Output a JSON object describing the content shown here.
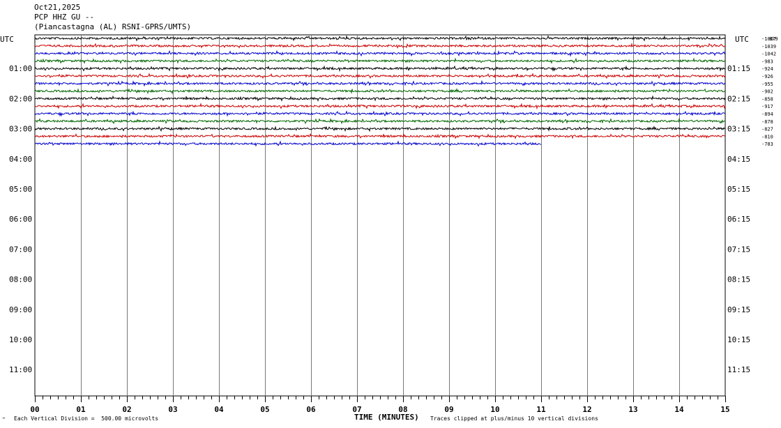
{
  "header": {
    "date": "Oct21,2025",
    "channel": "PCP HHZ GU --",
    "station": "(Piancastagna (AL) RSNI-GPRS/UMTS)"
  },
  "chart_data": {
    "type": "line",
    "title": "PCP HHZ GU --",
    "xlabel": "TIME (MINUTES)",
    "x_ticks": [
      "00",
      "01",
      "02",
      "03",
      "04",
      "05",
      "06",
      "07",
      "08",
      "09",
      "10",
      "11",
      "12",
      "13",
      "14",
      "15"
    ],
    "xlim": [
      0,
      15
    ],
    "left_unit": "UTC",
    "right_unit": "UTC",
    "left_hour_labels": [
      "01:00",
      "02:00",
      "03:00",
      "04:00",
      "05:00",
      "06:00",
      "07:00",
      "08:00",
      "09:00",
      "10:00",
      "11:00"
    ],
    "right_hour_labels": [
      "01:15",
      "02:15",
      "03:15",
      "04:15",
      "05:15",
      "06:15",
      "07:15",
      "08:15",
      "09:15",
      "10:15",
      "11:15"
    ],
    "trace_colors": [
      "#000000",
      "#cc0000",
      "#0000cc",
      "#006600"
    ],
    "traces": [
      {
        "offset": "-1067",
        "end_minute": 15
      },
      {
        "offset": "-1039",
        "end_minute": 15
      },
      {
        "offset": "-1042",
        "end_minute": 15
      },
      {
        "offset": "-983",
        "end_minute": 15
      },
      {
        "offset": "-924",
        "end_minute": 15
      },
      {
        "offset": "-926",
        "end_minute": 15
      },
      {
        "offset": "-955",
        "end_minute": 15
      },
      {
        "offset": "-902",
        "end_minute": 15
      },
      {
        "offset": "-858",
        "end_minute": 15
      },
      {
        "offset": "-917",
        "end_minute": 15
      },
      {
        "offset": "-894",
        "end_minute": 15
      },
      {
        "offset": "-878",
        "end_minute": 15
      },
      {
        "offset": "-827",
        "end_minute": 15
      },
      {
        "offset": "-810",
        "end_minute": 15
      },
      {
        "offset": "-783",
        "end_minute": 11
      }
    ],
    "top_right_extra_label": "879",
    "footer_left": "Each Vertical Division =  500.00 microvolts",
    "footer_right": "Traces clipped at plus/minus 10 vertical divisions",
    "corner_mark": "‴"
  }
}
